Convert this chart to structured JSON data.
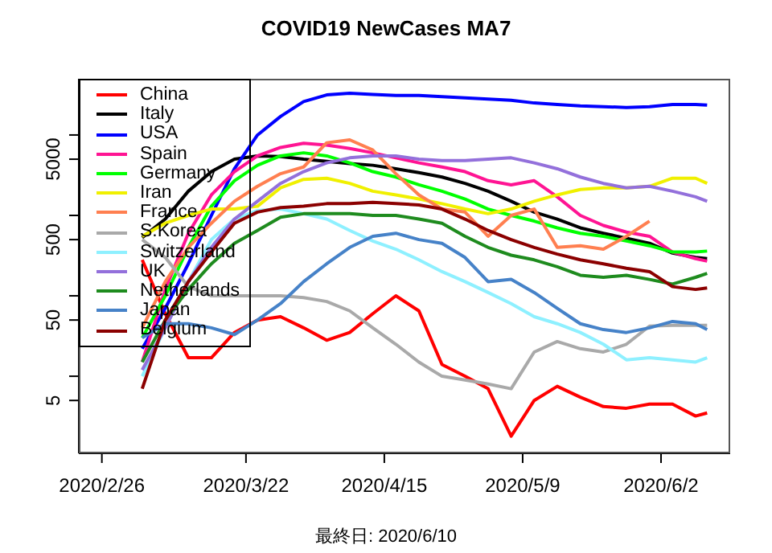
{
  "chart_data": {
    "type": "line",
    "title": "COVID19 NewCases MA7",
    "annotations": [
      "最終日: 2020/6/10"
    ],
    "x": [
      "2020-03-04",
      "2020-03-08",
      "2020-03-12",
      "2020-03-16",
      "2020-03-20",
      "2020-03-24",
      "2020-03-28",
      "2020-04-01",
      "2020-04-05",
      "2020-04-09",
      "2020-04-13",
      "2020-04-17",
      "2020-04-21",
      "2020-04-25",
      "2020-04-29",
      "2020-05-03",
      "2020-05-07",
      "2020-05-11",
      "2020-05-15",
      "2020-05-19",
      "2020-05-23",
      "2020-05-27",
      "2020-05-31",
      "2020-06-04",
      "2020-06-08",
      "2020-06-10"
    ],
    "series": [
      {
        "name": "China",
        "color": "#ff0000",
        "values": [
          280,
          60,
          17,
          17,
          35,
          50,
          55,
          40,
          28,
          35,
          60,
          100,
          65,
          14,
          10,
          7,
          1.8,
          5,
          7.5,
          5.5,
          4.2,
          4,
          4.5,
          4.5,
          3.2,
          3.5
        ]
      },
      {
        "name": "Italy",
        "color": "#000000",
        "values": [
          530,
          900,
          2000,
          3500,
          5000,
          5500,
          5400,
          5000,
          4700,
          4400,
          4200,
          3800,
          3400,
          3000,
          2500,
          2000,
          1500,
          1100,
          900,
          700,
          600,
          520,
          450,
          340,
          300,
          290
        ]
      },
      {
        "name": "USA",
        "color": "#0000ff",
        "values": [
          22,
          70,
          250,
          1000,
          3800,
          10000,
          17000,
          26000,
          31500,
          33000,
          32000,
          31000,
          31000,
          30000,
          29000,
          28000,
          27000,
          25000,
          24000,
          23000,
          22500,
          22000,
          22500,
          24000,
          24000,
          23500
        ]
      },
      {
        "name": "Spain",
        "color": "#ff1493",
        "values": [
          15,
          120,
          600,
          1800,
          3500,
          5500,
          7000,
          7900,
          7500,
          6800,
          6000,
          5200,
          4500,
          4000,
          3500,
          2700,
          2400,
          2700,
          1700,
          1000,
          750,
          620,
          550,
          350,
          290,
          270
        ]
      },
      {
        "name": "Germany",
        "color": "#00ff00",
        "values": [
          30,
          100,
          400,
          1300,
          2700,
          4200,
          5500,
          6000,
          5500,
          4500,
          3500,
          3000,
          2400,
          2000,
          1600,
          1200,
          1000,
          850,
          700,
          600,
          550,
          480,
          420,
          350,
          350,
          360
        ]
      },
      {
        "name": "Iran",
        "color": "#f0f000",
        "values": [
          550,
          800,
          1000,
          1200,
          1200,
          1300,
          2200,
          2800,
          2900,
          2500,
          2000,
          1800,
          1600,
          1400,
          1200,
          1050,
          1200,
          1500,
          1800,
          2100,
          2200,
          2200,
          2300,
          2900,
          2900,
          2500
        ]
      },
      {
        "name": "France",
        "color": "#ff7f50",
        "values": [
          40,
          150,
          400,
          800,
          1500,
          2300,
          3300,
          4000,
          8000,
          8700,
          6500,
          3300,
          1800,
          1200,
          1100,
          550,
          1000,
          1200,
          400,
          420,
          380,
          550,
          850,
          null,
          null,
          null
        ]
      },
      {
        "name": "S.Korea",
        "color": "#a9a9a9",
        "values": [
          500,
          300,
          130,
          100,
          100,
          100,
          100,
          95,
          85,
          65,
          40,
          25,
          15,
          10,
          9,
          8,
          7,
          20,
          27,
          22,
          20,
          25,
          42,
          43,
          43,
          43
        ]
      },
      {
        "name": "Switzerland",
        "color": "#8ef0ff",
        "values": [
          10,
          40,
          150,
          500,
          900,
          1150,
          1200,
          1050,
          900,
          650,
          480,
          380,
          280,
          200,
          150,
          110,
          80,
          55,
          45,
          35,
          25,
          16,
          17,
          16,
          15,
          17
        ]
      },
      {
        "name": "UK",
        "color": "#9370db",
        "values": [
          12,
          40,
          150,
          400,
          900,
          1500,
          2500,
          3500,
          4500,
          5200,
          5500,
          5500,
          5000,
          4800,
          4800,
          5000,
          5200,
          4500,
          3800,
          3000,
          2500,
          2200,
          2300,
          2000,
          1700,
          1500
        ]
      },
      {
        "name": "Netherlands",
        "color": "#1e8b1e",
        "values": [
          15,
          50,
          120,
          250,
          450,
          650,
          950,
          1050,
          1050,
          1050,
          1000,
          1000,
          900,
          800,
          550,
          400,
          320,
          280,
          230,
          180,
          170,
          180,
          160,
          140,
          170,
          190
        ]
      },
      {
        "name": "Japan",
        "color": "#4682c8",
        "values": [
          30,
          45,
          45,
          40,
          33,
          50,
          80,
          150,
          250,
          400,
          550,
          600,
          500,
          450,
          300,
          150,
          160,
          110,
          70,
          45,
          38,
          35,
          40,
          48,
          45,
          38
        ]
      },
      {
        "name": "Belgium",
        "color": "#8b0000",
        "values": [
          7,
          50,
          150,
          350,
          800,
          1100,
          1250,
          1300,
          1400,
          1400,
          1450,
          1400,
          1350,
          1200,
          900,
          650,
          500,
          400,
          330,
          280,
          250,
          220,
          200,
          130,
          120,
          125
        ]
      }
    ],
    "xlim": [
      "2020-02-22",
      "2020-06-14"
    ],
    "xticks": [
      {
        "value": "2020-02-26",
        "label": "2020/2/26"
      },
      {
        "value": "2020-03-22",
        "label": "2020/3/22"
      },
      {
        "value": "2020-04-15",
        "label": "2020/4/15"
      },
      {
        "value": "2020-05-09",
        "label": "2020/5/9"
      },
      {
        "value": "2020-06-02",
        "label": "2020/6/2"
      }
    ],
    "ylim": [
      1.1,
      50000
    ],
    "yticks": [
      5,
      {
        "value": 10,
        "label": null
      },
      50,
      {
        "value": 100,
        "label": null
      },
      500,
      {
        "value": 1000,
        "label": null
      },
      5000,
      {
        "value": 10000,
        "label": null
      }
    ],
    "log": "y",
    "grid": false,
    "legend": "top left"
  }
}
